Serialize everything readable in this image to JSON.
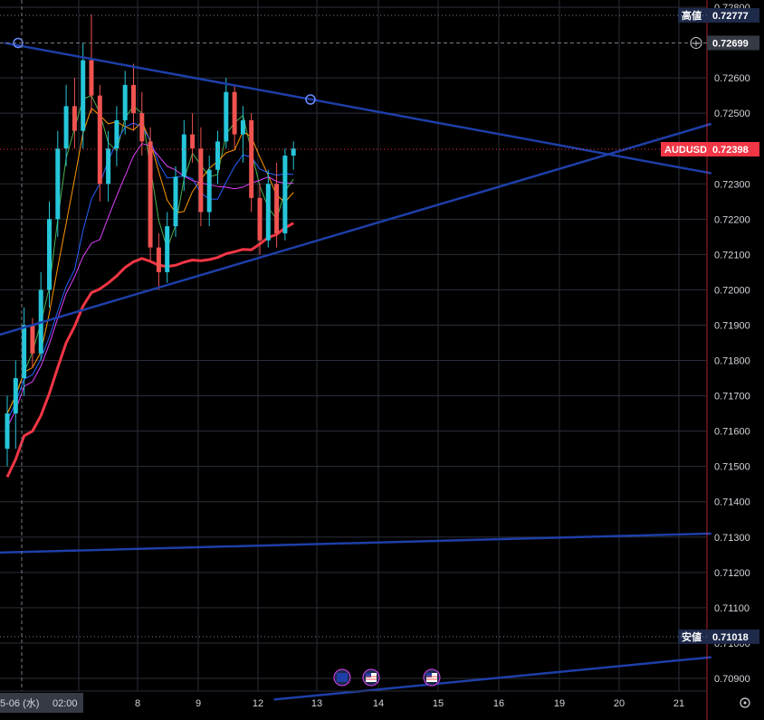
{
  "chart_data": {
    "type": "candlestick",
    "symbol": "AUDUSD",
    "current_price": "0.72398",
    "high_label": "高値",
    "high_value": "0.72777",
    "low_label": "安値",
    "low_value": "0.71018",
    "crosshair_price": "0.72699",
    "crosshair_date_label": "5-06 (水)",
    "crosshair_time_label": "02:00",
    "y_ticks": [
      "0.72800",
      "0.72600",
      "0.72500",
      "0.72300",
      "0.72200",
      "0.72100",
      "0.72000",
      "0.71900",
      "0.71800",
      "0.71700",
      "0.71600",
      "0.71500",
      "0.71400",
      "0.71300",
      "0.71200",
      "0.71100",
      "0.71000",
      "0.70900"
    ],
    "x_ticks": [
      "8",
      "9",
      "12",
      "13",
      "14",
      "15",
      "16",
      "19",
      "20",
      "21"
    ],
    "ylim": [
      0.7085,
      0.7282
    ],
    "colors": {
      "up": "#26c6da",
      "down": "#ef5350",
      "trendline": "#1e3fa8",
      "ma_red": "#f23645",
      "ma_orange": "#ff9800",
      "ma_green": "#4caf50",
      "ma_blue": "#2962ff",
      "ma_magenta": "#e040fb",
      "price_tag": "#f23645",
      "axis_tag": "#1e2a4a"
    },
    "candles": [
      {
        "o": 0.7155,
        "h": 0.717,
        "l": 0.715,
        "c": 0.7165
      },
      {
        "o": 0.7165,
        "h": 0.718,
        "l": 0.7155,
        "c": 0.7175
      },
      {
        "o": 0.7175,
        "h": 0.7195,
        "l": 0.717,
        "c": 0.719
      },
      {
        "o": 0.719,
        "h": 0.7192,
        "l": 0.7178,
        "c": 0.7182
      },
      {
        "o": 0.7182,
        "h": 0.7205,
        "l": 0.718,
        "c": 0.72
      },
      {
        "o": 0.72,
        "h": 0.7225,
        "l": 0.7195,
        "c": 0.722
      },
      {
        "o": 0.722,
        "h": 0.7245,
        "l": 0.7215,
        "c": 0.724
      },
      {
        "o": 0.724,
        "h": 0.7258,
        "l": 0.7235,
        "c": 0.7252
      },
      {
        "o": 0.7252,
        "h": 0.726,
        "l": 0.724,
        "c": 0.7245
      },
      {
        "o": 0.7245,
        "h": 0.727,
        "l": 0.724,
        "c": 0.7265
      },
      {
        "o": 0.7265,
        "h": 0.7278,
        "l": 0.725,
        "c": 0.7255
      },
      {
        "o": 0.7255,
        "h": 0.7258,
        "l": 0.7225,
        "c": 0.723
      },
      {
        "o": 0.723,
        "h": 0.7245,
        "l": 0.7225,
        "c": 0.724
      },
      {
        "o": 0.724,
        "h": 0.7252,
        "l": 0.7235,
        "c": 0.7248
      },
      {
        "o": 0.7248,
        "h": 0.7262,
        "l": 0.7244,
        "c": 0.7258
      },
      {
        "o": 0.7258,
        "h": 0.7264,
        "l": 0.7245,
        "c": 0.725
      },
      {
        "o": 0.725,
        "h": 0.7256,
        "l": 0.7238,
        "c": 0.7242
      },
      {
        "o": 0.7242,
        "h": 0.7246,
        "l": 0.7208,
        "c": 0.7212
      },
      {
        "o": 0.7212,
        "h": 0.7216,
        "l": 0.72,
        "c": 0.7205
      },
      {
        "o": 0.7205,
        "h": 0.7222,
        "l": 0.7202,
        "c": 0.7218
      },
      {
        "o": 0.7218,
        "h": 0.7235,
        "l": 0.7215,
        "c": 0.7232
      },
      {
        "o": 0.7232,
        "h": 0.7248,
        "l": 0.7228,
        "c": 0.7244
      },
      {
        "o": 0.7244,
        "h": 0.725,
        "l": 0.7236,
        "c": 0.724
      },
      {
        "o": 0.724,
        "h": 0.7246,
        "l": 0.7218,
        "c": 0.7222
      },
      {
        "o": 0.7222,
        "h": 0.7238,
        "l": 0.7218,
        "c": 0.7234
      },
      {
        "o": 0.7234,
        "h": 0.7245,
        "l": 0.723,
        "c": 0.7242
      },
      {
        "o": 0.7242,
        "h": 0.726,
        "l": 0.724,
        "c": 0.7256
      },
      {
        "o": 0.7256,
        "h": 0.7258,
        "l": 0.724,
        "c": 0.7244
      },
      {
        "o": 0.7244,
        "h": 0.7252,
        "l": 0.7236,
        "c": 0.7248
      },
      {
        "o": 0.7248,
        "h": 0.725,
        "l": 0.7222,
        "c": 0.7226
      },
      {
        "o": 0.7226,
        "h": 0.723,
        "l": 0.721,
        "c": 0.7214
      },
      {
        "o": 0.7214,
        "h": 0.7234,
        "l": 0.7212,
        "c": 0.723
      },
      {
        "o": 0.723,
        "h": 0.7236,
        "l": 0.7212,
        "c": 0.7216
      },
      {
        "o": 0.7216,
        "h": 0.724,
        "l": 0.7214,
        "c": 0.7238
      },
      {
        "o": 0.7238,
        "h": 0.7242,
        "l": 0.7234,
        "c": 0.724
      }
    ],
    "trendlines": [
      {
        "from": {
          "bar": 0,
          "price": 0.72699
        },
        "to": {
          "bar": 56,
          "price": 0.7233
        }
      },
      {
        "from": {
          "bar": -1,
          "price": 0.7187
        },
        "to": {
          "bar": 56,
          "price": 0.7247
        }
      },
      {
        "from": {
          "bar": -1,
          "price": 0.71256
        },
        "to": {
          "bar": 56,
          "price": 0.7131
        }
      },
      {
        "from": {
          "bar": 32,
          "price": 0.7084
        },
        "to": {
          "bar": 56,
          "price": 0.7096
        }
      }
    ]
  }
}
